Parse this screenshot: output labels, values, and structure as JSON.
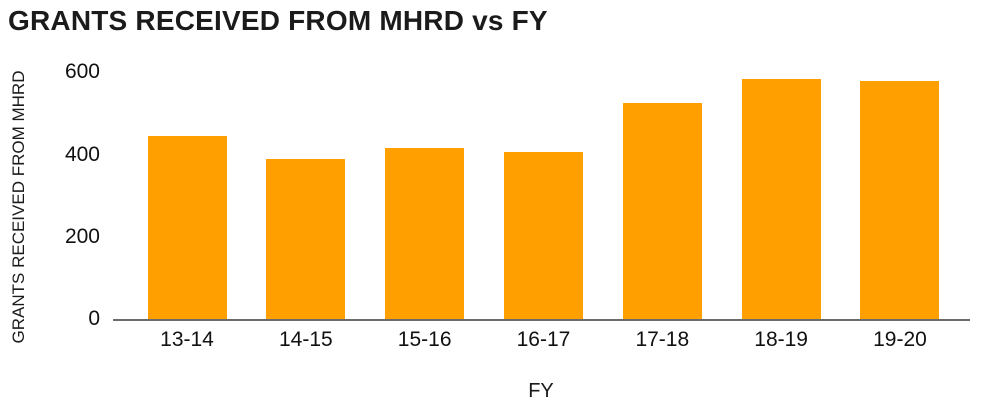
{
  "title": "GRANTS RECEIVED FROM MHRD vs FY",
  "chart_data": {
    "type": "bar",
    "title": "GRANTS RECEIVED FROM MHRD vs FY",
    "xlabel": "FY",
    "ylabel": "GRANTS RECEIVED FROM MHRD",
    "categories": [
      "13-14",
      "14-15",
      "15-16",
      "16-17",
      "17-18",
      "18-19",
      "19-20"
    ],
    "values": [
      445,
      390,
      417,
      406,
      526,
      584,
      578
    ],
    "yticks": [
      0,
      200,
      400,
      600
    ],
    "ylim": [
      0,
      600
    ],
    "grid": false,
    "legend": false,
    "bar_color": "#ffa000",
    "axis_line_color": "#6b6b6b",
    "text_color": "#1b1b1b"
  }
}
